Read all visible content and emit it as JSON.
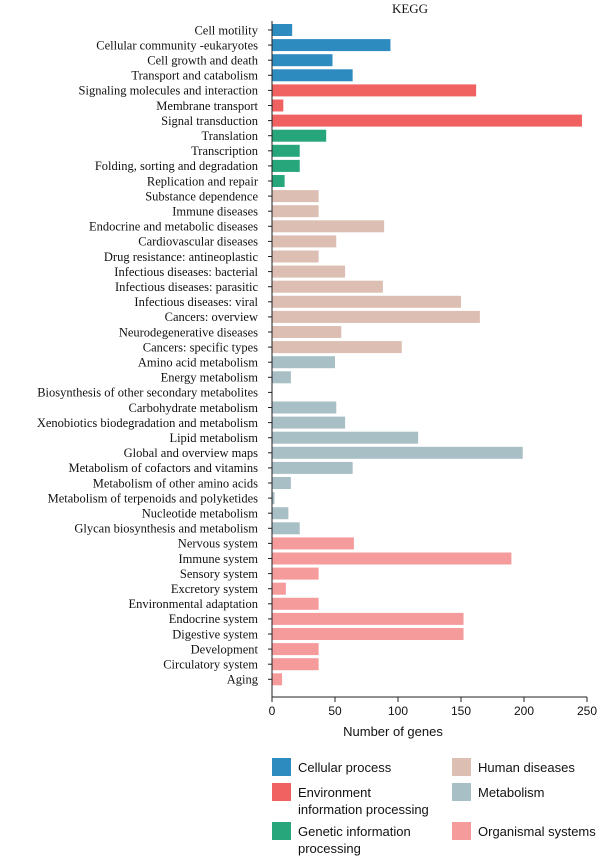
{
  "chart_data": {
    "type": "bar",
    "orientation": "horizontal",
    "title": "KEGG",
    "xlabel": "Number of genes",
    "ylabel": "",
    "xlim": [
      0,
      250
    ],
    "xticks": [
      0,
      50,
      100,
      150,
      200,
      250
    ],
    "grid": false,
    "legend_position": "bottom",
    "groups": [
      {
        "name": "Cellular process",
        "color": "#2e8bc0"
      },
      {
        "name": "Environment information processing",
        "label_lines": [
          "Environment",
          "information processing"
        ],
        "color": "#f06262"
      },
      {
        "name": "Genetic information processing",
        "label_lines": [
          "Genetic information",
          "processing"
        ],
        "color": "#26a67a"
      },
      {
        "name": "Human diseases",
        "color": "#dcbfb2"
      },
      {
        "name": "Metabolism",
        "color": "#a8bfc6"
      },
      {
        "name": "Organismal systems",
        "color": "#f59b9c"
      }
    ],
    "categories": [
      "Cell motility",
      "Cellular community -eukaryotes",
      "Cell growth and death",
      "Transport and catabolism",
      "Signaling molecules and interaction",
      "Membrane transport",
      "Signal transduction",
      "Translation",
      "Transcription",
      "Folding, sorting and degradation",
      "Replication and repair",
      "Substance dependence",
      "Immune diseases",
      "Endocrine and metabolic diseases",
      "Cardiovascular diseases",
      "Drug resistance: antineoplastic",
      "Infectious diseases: bacterial",
      "Infectious diseases: parasitic",
      "Infectious diseases: viral",
      "Cancers: overview",
      "Neurodegenerative diseases",
      "Cancers: specific types",
      "Amino acid metabolism",
      "Energy metabolism",
      "Biosynthesis of other secondary metabolites",
      "Carbohydrate metabolism",
      "Xenobiotics biodegradation and metabolism",
      "Lipid metabolism",
      "Global and overview maps",
      "Metabolism of cofactors and vitamins",
      "Metabolism of other amino acids",
      "Metabolism of terpenoids and polyketides",
      "Nucleotide metabolism",
      "Glycan biosynthesis and metabolism",
      "Nervous system",
      "Immune system",
      "Sensory system",
      "Excretory system",
      "Environmental adaptation",
      "Endocrine system",
      "Digestive system",
      "Development",
      "Circulatory system",
      "Aging"
    ],
    "values": [
      16,
      94,
      48,
      64,
      162,
      9,
      246,
      43,
      22,
      22,
      10,
      37,
      37,
      89,
      51,
      37,
      58,
      88,
      150,
      165,
      55,
      103,
      50,
      15,
      0,
      51,
      58,
      116,
      199,
      64,
      15,
      2,
      13,
      22,
      65,
      190,
      37,
      11,
      37,
      152,
      152,
      37,
      37,
      8
    ],
    "group_index": [
      0,
      0,
      0,
      0,
      1,
      1,
      1,
      2,
      2,
      2,
      2,
      3,
      3,
      3,
      3,
      3,
      3,
      3,
      3,
      3,
      3,
      3,
      4,
      4,
      4,
      4,
      4,
      4,
      4,
      4,
      4,
      4,
      4,
      4,
      5,
      5,
      5,
      5,
      5,
      5,
      5,
      5,
      5,
      5
    ]
  }
}
